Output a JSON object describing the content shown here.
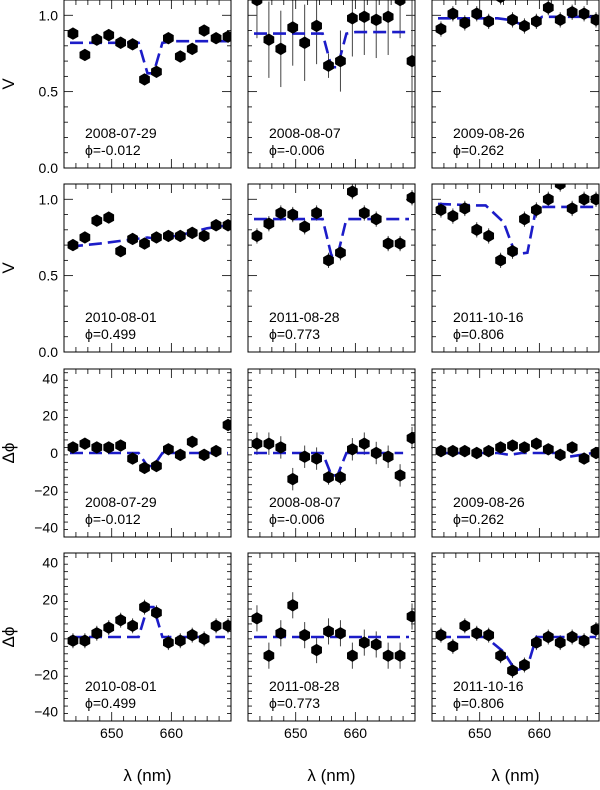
{
  "figure": {
    "xlabel": "λ (nm)",
    "x_ticks": [
      "650",
      "660"
    ],
    "marker_color": "#000000",
    "model_color": "#1c1cc8"
  },
  "chart_data": [
    {
      "type": "scatter",
      "row": 0,
      "col": 0,
      "ylabel": "V",
      "ylim": [
        0,
        1.1
      ],
      "yticks": [
        "0.0",
        "0.5",
        "1.0"
      ],
      "xlim": [
        642,
        670
      ],
      "date": "2008-07-29",
      "phase": "ϕ=-0.012",
      "x": [
        643.5,
        645.5,
        647.5,
        649.5,
        651.5,
        653.5,
        655.5,
        657.5,
        659.5,
        661.5,
        663.5,
        665.5,
        667.5,
        669.5
      ],
      "y": [
        0.88,
        0.74,
        0.84,
        0.87,
        0.82,
        0.81,
        0.58,
        0.63,
        0.85,
        0.73,
        0.78,
        0.9,
        0.85,
        0.86
      ],
      "err": [
        0.03,
        0.03,
        0.03,
        0.03,
        0.03,
        0.03,
        0.03,
        0.03,
        0.03,
        0.03,
        0.03,
        0.03,
        0.03,
        0.03
      ],
      "model": {
        "x": [
          643,
          652.5,
          654.5,
          656,
          657,
          658.5,
          660.5,
          669.5
        ],
        "y": [
          0.82,
          0.82,
          0.82,
          0.62,
          0.62,
          0.82,
          0.83,
          0.83
        ]
      }
    },
    {
      "type": "scatter",
      "row": 0,
      "col": 1,
      "ylabel": "",
      "ylim": [
        0,
        1.1
      ],
      "yticks": [
        "0.0",
        "0.5",
        "1.0"
      ],
      "xlim": [
        642,
        670
      ],
      "date": "2008-08-07",
      "phase": "ϕ=-0.006",
      "x": [
        643.5,
        645.5,
        647.5,
        649.5,
        651.5,
        653.5,
        655.5,
        657.5,
        659.5,
        661.5,
        663.5,
        665.5,
        667.5,
        669.5
      ],
      "y": [
        1.1,
        0.84,
        0.78,
        0.92,
        0.82,
        0.93,
        0.67,
        0.7,
        0.98,
        0.99,
        0.97,
        0.99,
        1.1,
        0.7
      ],
      "err": [
        0.25,
        0.25,
        0.25,
        0.25,
        0.25,
        0.25,
        0.08,
        0.2,
        0.25,
        0.25,
        0.25,
        0.25,
        0.25,
        0.5
      ],
      "model": {
        "x": [
          643,
          653,
          654.5,
          656,
          657,
          658.5,
          660,
          669
        ],
        "y": [
          0.88,
          0.88,
          0.88,
          0.66,
          0.66,
          0.88,
          0.89,
          0.89
        ]
      }
    },
    {
      "type": "scatter",
      "row": 0,
      "col": 2,
      "ylabel": "",
      "ylim": [
        0,
        1.1
      ],
      "yticks": [
        "0.0",
        "0.5",
        "1.0"
      ],
      "xlim": [
        642,
        670
      ],
      "date": "2009-08-26",
      "phase": "ϕ=0.262",
      "x": [
        643.5,
        645.5,
        647.5,
        649.5,
        651.5,
        653.5,
        655.5,
        657.5,
        659.5,
        661.5,
        663.5,
        665.5,
        667.5,
        669.5
      ],
      "y": [
        0.91,
        1.01,
        0.95,
        1.01,
        0.96,
        1.12,
        0.97,
        0.93,
        0.96,
        1.05,
        0.97,
        1.02,
        1.01,
        0.97
      ],
      "err": [
        0.05,
        0.05,
        0.05,
        0.05,
        0.05,
        0.05,
        0.05,
        0.05,
        0.05,
        0.05,
        0.05,
        0.05,
        0.05,
        0.05
      ],
      "model": {
        "x": [
          643,
          653,
          655,
          657,
          658.5,
          660.5,
          669.5
        ],
        "y": [
          0.98,
          0.98,
          0.97,
          0.94,
          0.94,
          0.99,
          0.99
        ]
      }
    },
    {
      "type": "scatter",
      "row": 1,
      "col": 0,
      "ylabel": "V",
      "ylim": [
        0,
        1.1
      ],
      "yticks": [
        "0.0",
        "0.5",
        "1.0"
      ],
      "xlim": [
        642,
        670
      ],
      "date": "2010-08-01",
      "phase": "ϕ=0.499",
      "x": [
        643.5,
        645.5,
        647.5,
        649.5,
        651.5,
        653.5,
        655.5,
        657.5,
        659.5,
        661.5,
        663.5,
        665.5,
        667.5,
        669.5
      ],
      "y": [
        0.7,
        0.75,
        0.86,
        0.88,
        0.66,
        0.74,
        0.71,
        0.75,
        0.76,
        0.76,
        0.78,
        0.76,
        0.83,
        0.83
      ],
      "err": [
        0.03,
        0.03,
        0.03,
        0.03,
        0.03,
        0.03,
        0.03,
        0.03,
        0.03,
        0.03,
        0.03,
        0.03,
        0.03,
        0.03
      ],
      "model": {
        "x": [
          643,
          648,
          652,
          656,
          658,
          662,
          666,
          669.5
        ],
        "y": [
          0.69,
          0.71,
          0.73,
          0.75,
          0.74,
          0.77,
          0.81,
          0.83
        ]
      }
    },
    {
      "type": "scatter",
      "row": 1,
      "col": 1,
      "ylabel": "",
      "ylim": [
        0,
        1.1
      ],
      "yticks": [
        "0.0",
        "0.5",
        "1.0"
      ],
      "xlim": [
        642,
        670
      ],
      "date": "2011-08-28",
      "phase": "ϕ=0.773",
      "x": [
        643.5,
        645.5,
        647.5,
        649.5,
        651.5,
        653.5,
        655.5,
        657.5,
        659.5,
        661.5,
        663.5,
        665.5,
        667.5,
        669.5
      ],
      "y": [
        0.76,
        0.84,
        0.91,
        0.9,
        0.82,
        0.91,
        0.6,
        0.65,
        1.05,
        0.91,
        0.87,
        0.71,
        0.71,
        1.01
      ],
      "err": [
        0.05,
        0.05,
        0.05,
        0.05,
        0.05,
        0.05,
        0.05,
        0.05,
        0.05,
        0.05,
        0.05,
        0.05,
        0.05,
        0.05
      ],
      "model": {
        "x": [
          643,
          653,
          654.5,
          656,
          657,
          658.5,
          660.5,
          669
        ],
        "y": [
          0.87,
          0.87,
          0.87,
          0.63,
          0.63,
          0.87,
          0.87,
          0.87
        ]
      }
    },
    {
      "type": "scatter",
      "row": 1,
      "col": 2,
      "ylabel": "",
      "ylim": [
        0,
        1.1
      ],
      "yticks": [
        "0.0",
        "0.5",
        "1.0"
      ],
      "xlim": [
        642,
        670
      ],
      "date": "2011-10-16",
      "phase": "ϕ=0.806",
      "x": [
        643.5,
        645.5,
        647.5,
        649.5,
        651.5,
        653.5,
        655.5,
        657.5,
        659.5,
        661.5,
        663.5,
        665.5,
        667.5,
        669.5
      ],
      "y": [
        0.93,
        0.89,
        0.94,
        0.8,
        0.76,
        0.6,
        0.66,
        0.87,
        0.93,
        1.0,
        1.1,
        0.94,
        1.0,
        1.0
      ],
      "err": [
        0.05,
        0.05,
        0.05,
        0.05,
        0.05,
        0.05,
        0.05,
        0.05,
        0.05,
        0.05,
        0.05,
        0.05,
        0.05,
        0.05
      ],
      "model": {
        "x": [
          643,
          649.5,
          651,
          654,
          656,
          658,
          659.5,
          669.5
        ],
        "y": [
          0.97,
          0.96,
          0.96,
          0.85,
          0.64,
          0.65,
          0.95,
          0.95
        ]
      }
    },
    {
      "type": "scatter",
      "row": 2,
      "col": 0,
      "ylabel": "Δϕ",
      "ylim": [
        -45,
        45
      ],
      "yticks": [
        "−40",
        "−20",
        "0",
        "20",
        "40"
      ],
      "xlim": [
        642,
        670
      ],
      "date": "2008-07-29",
      "phase": "ϕ=-0.012",
      "x": [
        643.5,
        645.5,
        647.5,
        649.5,
        651.5,
        653.5,
        655.5,
        657.5,
        659.5,
        661.5,
        663.5,
        665.5,
        667.5,
        669.5
      ],
      "y": [
        3,
        5,
        3,
        3,
        4,
        -3,
        -8,
        -7,
        2,
        -1,
        6,
        -1,
        1,
        15
      ],
      "err": [
        2,
        2,
        2,
        2,
        2,
        2,
        2,
        2,
        2,
        2,
        2,
        2,
        2,
        2
      ],
      "model": {
        "x": [
          643,
          652.5,
          654.5,
          656,
          657,
          658.5,
          660.5,
          669.5
        ],
        "y": [
          0,
          0,
          0,
          -7,
          -7,
          0,
          0,
          0
        ]
      }
    },
    {
      "type": "scatter",
      "row": 2,
      "col": 1,
      "ylabel": "",
      "ylim": [
        -45,
        45
      ],
      "yticks": [
        "−40",
        "−20",
        "0",
        "20",
        "40"
      ],
      "xlim": [
        642,
        670
      ],
      "date": "2008-08-07",
      "phase": "ϕ=-0.006",
      "x": [
        643.5,
        645.5,
        647.5,
        649.5,
        651.5,
        653.5,
        655.5,
        657.5,
        659.5,
        661.5,
        663.5,
        665.5,
        667.5,
        669.5
      ],
      "y": [
        5,
        5,
        3,
        -14,
        -2,
        -3,
        -13,
        -13,
        2,
        5,
        0,
        -2,
        -12,
        8
      ],
      "err": [
        6,
        6,
        6,
        6,
        6,
        6,
        4,
        4,
        6,
        6,
        6,
        6,
        6,
        6
      ],
      "model": {
        "x": [
          643,
          653,
          654.5,
          656,
          657,
          658.5,
          660,
          668
        ],
        "y": [
          0,
          0,
          0,
          -12,
          -12,
          0,
          0,
          0
        ]
      }
    },
    {
      "type": "scatter",
      "row": 2,
      "col": 2,
      "ylabel": "",
      "ylim": [
        -45,
        45
      ],
      "yticks": [
        "−40",
        "−20",
        "0",
        "20",
        "40"
      ],
      "xlim": [
        642,
        670
      ],
      "date": "2009-08-26",
      "phase": "ϕ=0.262",
      "x": [
        643.5,
        645.5,
        647.5,
        649.5,
        651.5,
        653.5,
        655.5,
        657.5,
        659.5,
        661.5,
        663.5,
        665.5,
        667.5,
        669.5
      ],
      "y": [
        1,
        1,
        1,
        0,
        1,
        3,
        4,
        3,
        5,
        2,
        -1,
        3,
        -3,
        0
      ],
      "err": [
        2,
        2,
        2,
        2,
        2,
        2,
        2,
        2,
        2,
        2,
        2,
        2,
        2,
        2
      ],
      "model": {
        "x": [
          643,
          653,
          655,
          657,
          659,
          661,
          663,
          665,
          669
        ],
        "y": [
          0,
          0,
          -1,
          0,
          0,
          0,
          0,
          -2,
          0
        ]
      }
    },
    {
      "type": "scatter",
      "row": 3,
      "col": 0,
      "ylabel": "Δϕ",
      "ylim": [
        -45,
        45
      ],
      "yticks": [
        "−40",
        "−20",
        "0",
        "20",
        "40"
      ],
      "xlim": [
        642,
        670
      ],
      "date": "2010-08-01",
      "phase": "ϕ=0.499",
      "x": [
        643.5,
        645.5,
        647.5,
        649.5,
        651.5,
        653.5,
        655.5,
        657.5,
        659.5,
        661.5,
        663.5,
        665.5,
        667.5,
        669.5
      ],
      "y": [
        -2,
        -2,
        2,
        5,
        9,
        6,
        16,
        13,
        -3,
        -2,
        1,
        -1,
        6,
        6
      ],
      "err": [
        4,
        4,
        4,
        4,
        4,
        4,
        4,
        4,
        4,
        4,
        4,
        4,
        4,
        4
      ],
      "model": {
        "x": [
          643,
          652.5,
          654.5,
          656,
          657,
          658.5,
          660.5,
          669
        ],
        "y": [
          0,
          0,
          0,
          16,
          16,
          0,
          0,
          0
        ]
      }
    },
    {
      "type": "scatter",
      "row": 3,
      "col": 1,
      "ylabel": "",
      "ylim": [
        -45,
        45
      ],
      "yticks": [
        "−40",
        "−20",
        "0",
        "20",
        "40"
      ],
      "xlim": [
        642,
        670
      ],
      "date": "2011-08-28",
      "phase": "ϕ=0.773",
      "x": [
        643.5,
        645.5,
        647.5,
        649.5,
        651.5,
        653.5,
        655.5,
        657.5,
        659.5,
        661.5,
        663.5,
        665.5,
        667.5,
        669.5
      ],
      "y": [
        10,
        -10,
        2,
        17,
        1,
        -7,
        3,
        2,
        -10,
        -3,
        -4,
        -10,
        -10,
        11
      ],
      "err": [
        7,
        7,
        7,
        7,
        7,
        7,
        7,
        7,
        7,
        7,
        7,
        7,
        7,
        7
      ],
      "model": {
        "x": [
          643,
          669
        ],
        "y": [
          0,
          0
        ]
      }
    },
    {
      "type": "scatter",
      "row": 3,
      "col": 2,
      "ylabel": "",
      "ylim": [
        -45,
        45
      ],
      "yticks": [
        "−40",
        "−20",
        "0",
        "20",
        "40"
      ],
      "xlim": [
        642,
        670
      ],
      "date": "2011-10-16",
      "phase": "ϕ=0.806",
      "x": [
        643.5,
        645.5,
        647.5,
        649.5,
        651.5,
        653.5,
        655.5,
        657.5,
        659.5,
        661.5,
        663.5,
        665.5,
        667.5,
        669.5
      ],
      "y": [
        1,
        -5,
        6,
        2,
        1,
        -10,
        -18,
        -15,
        -3,
        0,
        -3,
        0,
        -2,
        4
      ],
      "err": [
        4,
        4,
        4,
        4,
        4,
        4,
        4,
        4,
        4,
        4,
        4,
        4,
        4,
        4
      ],
      "model": {
        "x": [
          643,
          651,
          654,
          656,
          658,
          659.5,
          669.5
        ],
        "y": [
          0,
          0,
          -8,
          -18,
          -16,
          0,
          0
        ]
      }
    }
  ]
}
